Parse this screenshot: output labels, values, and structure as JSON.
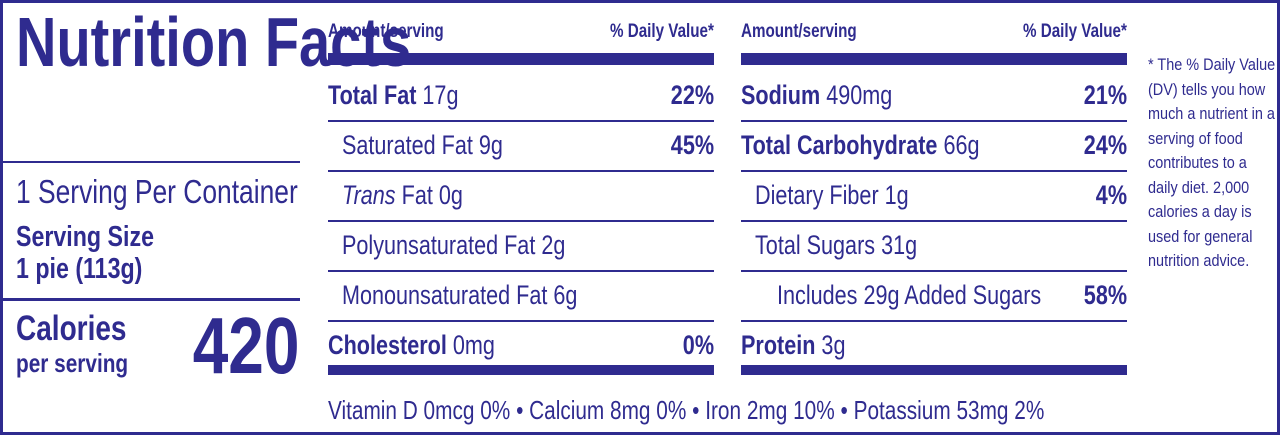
{
  "title": "Nutrition Facts",
  "servings": "1 Serving Per Container",
  "serving_size": {
    "label": "Serving Size",
    "value": "1 pie (113g)"
  },
  "calories": {
    "label": "Calories",
    "sublabel": "per serving",
    "value": "420"
  },
  "columns": [
    {
      "amount_header": "Amount/serving",
      "dv_header": "% Daily Value*",
      "rows": [
        {
          "name": "Total Fat",
          "amount": "17g",
          "dv": "22%"
        },
        {
          "name": "Saturated Fat 9g",
          "dv": "45%"
        },
        {
          "name_italic": "Trans",
          "name": "Fat 0g"
        },
        {
          "name": "Polyunsaturated Fat 2g"
        },
        {
          "name": "Monounsaturated Fat 6g"
        },
        {
          "name": "Cholesterol",
          "amount": "0mg",
          "dv": "0%"
        }
      ]
    },
    {
      "amount_header": "Amount/serving",
      "dv_header": "% Daily Value*",
      "rows": [
        {
          "name": "Sodium",
          "amount": "490mg",
          "dv": "21%"
        },
        {
          "name": "Total Carbohydrate",
          "amount": "66g",
          "dv": "24%"
        },
        {
          "name": "Dietary Fiber 1g",
          "dv": "4%"
        },
        {
          "name": "Total Sugars 31g"
        },
        {
          "name": "Includes 29g Added Sugars",
          "dv": "58%"
        },
        {
          "name": "Protein",
          "amount": "3g"
        }
      ]
    }
  ],
  "vitamins": [
    "Vitamin D 0mcg 0%",
    "Calcium 8mg 0%",
    "Iron 2mg 10%",
    "Potassium 53mg 2%"
  ],
  "separator": "•",
  "footnote": "* The % Daily Value (DV) tells you how much a nutrient in a serving of food contributes to a daily diet. 2,000 calories a day is used for general nutrition advice."
}
